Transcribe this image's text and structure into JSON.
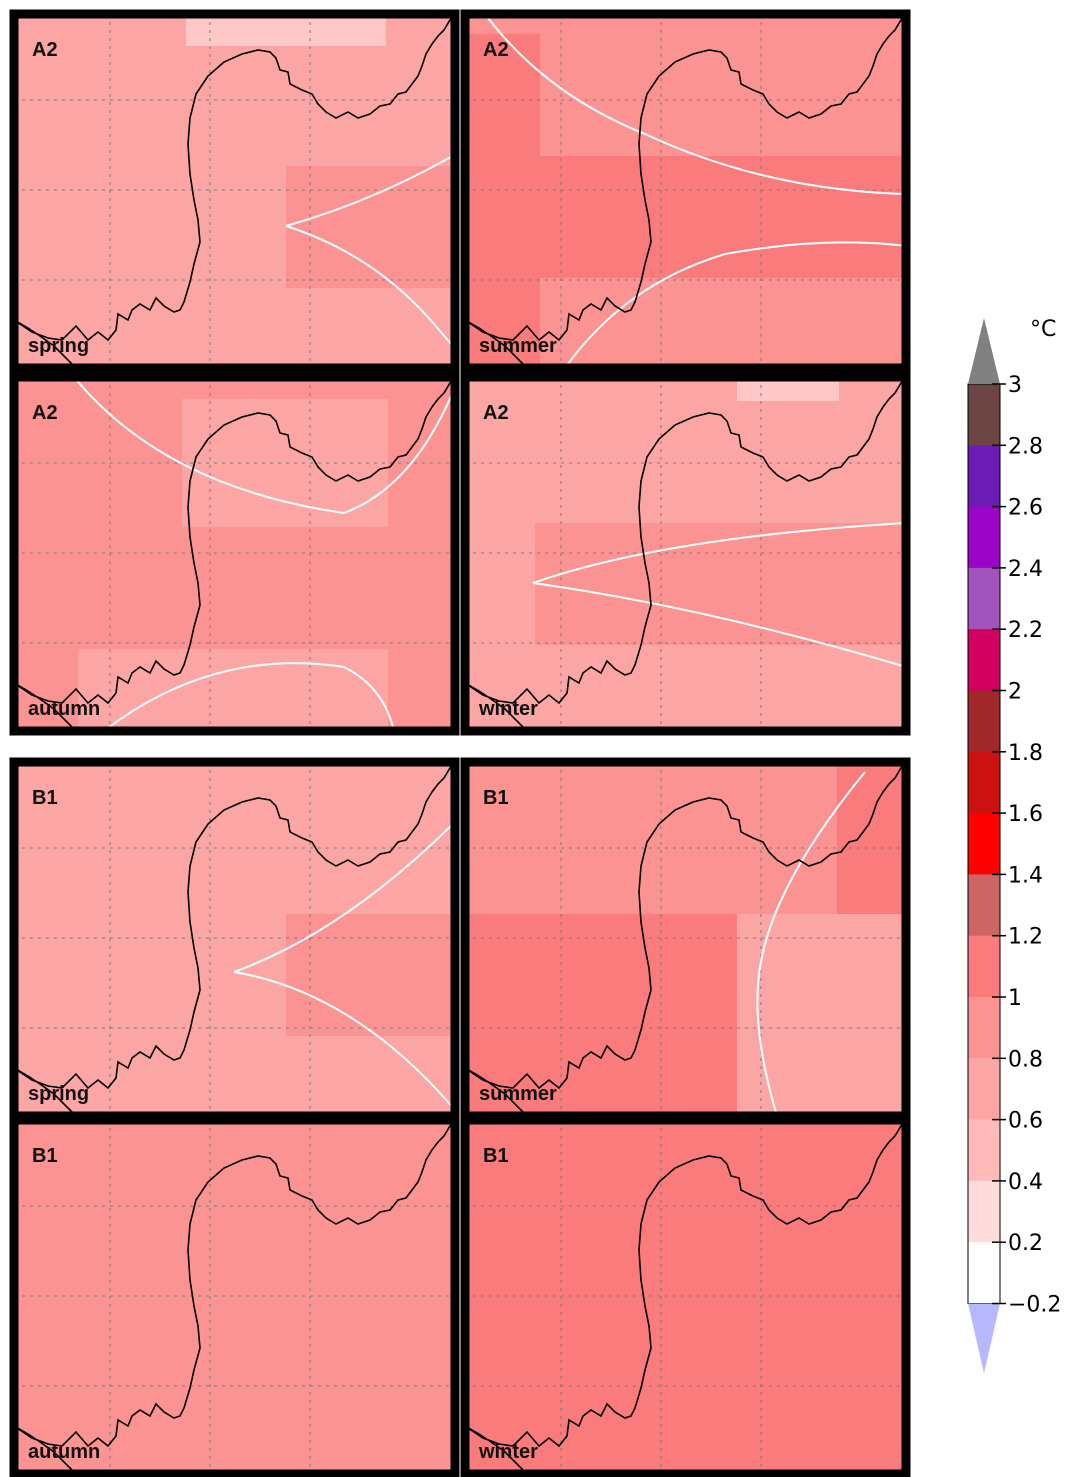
{
  "colors": {
    "panel_border": "#000000",
    "grid_line": "#7a7a7a",
    "coastline": "#000000",
    "contour": "#ffffff"
  },
  "panels": [
    {
      "scenario": "A2",
      "season": "spring",
      "base": "#fca5a5",
      "blocks": [
        {
          "color": "#ffc8c8",
          "cells": "top-center-bar"
        },
        {
          "color": "#fb9393",
          "cells": "right-middle"
        }
      ]
    },
    {
      "scenario": "A2",
      "season": "summer",
      "base": "#fb9393",
      "blocks": [
        {
          "color": "#f97b7b",
          "cells": "left-column"
        },
        {
          "color": "#f97b7b",
          "cells": "middle-band"
        }
      ]
    },
    {
      "scenario": "A2",
      "season": "autumn",
      "base": "#fb9393",
      "blocks": [
        {
          "color": "#fca5a5",
          "cells": "top-center"
        },
        {
          "color": "#fca5a5",
          "cells": "bottom-center"
        }
      ]
    },
    {
      "scenario": "A2",
      "season": "winter",
      "base": "#fca5a5",
      "blocks": [
        {
          "color": "#ffc8c8",
          "cells": "top-right-bar"
        },
        {
          "color": "#fb9393",
          "cells": "middle-band-right"
        }
      ]
    },
    {
      "scenario": "B1",
      "season": "spring",
      "base": "#fca5a5",
      "blocks": [
        {
          "color": "#fb9393",
          "cells": "right-middle"
        }
      ]
    },
    {
      "scenario": "B1",
      "season": "summer",
      "base": "#f97b7b",
      "blocks": [
        {
          "color": "#fb9393",
          "cells": "top-right"
        },
        {
          "color": "#fca5a5",
          "cells": "right-lower"
        }
      ]
    },
    {
      "scenario": "B1",
      "season": "autumn",
      "base": "#fb9393",
      "blocks": []
    },
    {
      "scenario": "B1",
      "season": "winter",
      "base": "#f97b7b",
      "blocks": []
    }
  ],
  "colorbar": {
    "unit": "°C",
    "labels": [
      "3",
      "2.8",
      "2.6",
      "2.4",
      "2.2",
      "2",
      "1.8",
      "1.6",
      "1.4",
      "1.2",
      "1",
      "0.8",
      "0.6",
      "0.4",
      "0.2",
      "−0.2"
    ],
    "over_color": "#808080",
    "under_color": "#b8b8ff",
    "bands_top_to_bottom": [
      "#6d4545",
      "#6a1cb4",
      "#9c05c8",
      "#a155bc",
      "#d2005f",
      "#a02828",
      "#cc1111",
      "#ff0000",
      "#cd6565",
      "#f97b7b",
      "#fb9393",
      "#fca5a5",
      "#ffb9b9",
      "#ffdcdc",
      "#ffffff"
    ]
  }
}
